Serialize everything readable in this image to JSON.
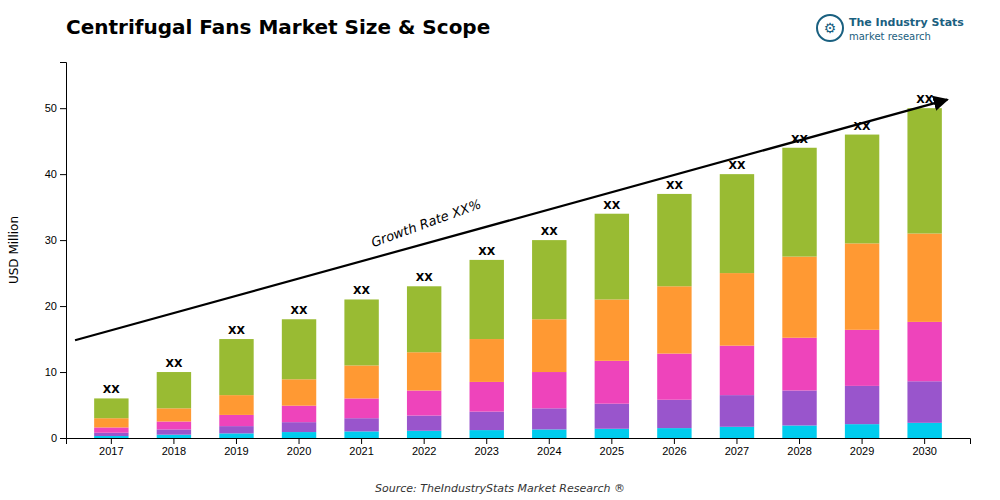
{
  "chart_data": {
    "type": "bar",
    "stacked": true,
    "title": "Centrifugal Fans Market Size & Scope",
    "y_label": "USD Million",
    "categories": [
      "2017",
      "2018",
      "2019",
      "2020",
      "2021",
      "2022",
      "2023",
      "2024",
      "2025",
      "2026",
      "2027",
      "2028",
      "2029",
      "2030"
    ],
    "series": [
      {
        "color": "#00ccee",
        "values": [
          0.3,
          0.5,
          0.7,
          0.9,
          1.0,
          1.1,
          1.2,
          1.3,
          1.4,
          1.5,
          1.7,
          1.9,
          2.1,
          2.3
        ]
      },
      {
        "color": "#9955cc",
        "values": [
          0.5,
          0.8,
          1.1,
          1.5,
          2.0,
          2.3,
          2.8,
          3.2,
          3.8,
          4.3,
          4.8,
          5.3,
          5.8,
          6.3
        ]
      },
      {
        "color": "#ee44bb",
        "values": [
          0.8,
          1.2,
          1.7,
          2.5,
          3.0,
          3.8,
          4.5,
          5.5,
          6.5,
          7.0,
          7.5,
          8.0,
          8.5,
          9.0
        ]
      },
      {
        "color": "#ff9933",
        "values": [
          1.4,
          2.0,
          3.0,
          4.0,
          5.0,
          5.8,
          6.5,
          8.0,
          9.3,
          10.2,
          11.0,
          12.3,
          13.1,
          13.4
        ]
      },
      {
        "color": "#99bb33",
        "values": [
          3.0,
          5.5,
          8.5,
          9.1,
          10.0,
          10.0,
          12.0,
          12.0,
          13.0,
          14.0,
          15.0,
          16.5,
          16.5,
          19.0
        ]
      }
    ],
    "bar_labels": [
      "XX",
      "XX",
      "XX",
      "XX",
      "XX",
      "XX",
      "XX",
      "XX",
      "XX",
      "XX",
      "XX",
      "XX",
      "XX",
      "XX"
    ],
    "annotations": [
      "Growth Rate XX%",
      "Source: TheIndustryStats Market Research ®",
      "The Industry Stats",
      "market research",
      "⚙"
    ],
    "ylim": [
      0,
      57
    ],
    "yticks": [
      0,
      10,
      20,
      30,
      40,
      50
    ],
    "grid": false
  }
}
